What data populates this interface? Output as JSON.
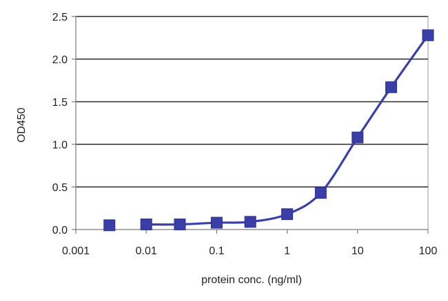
{
  "chart_data": {
    "type": "line",
    "title": "",
    "xlabel": "protein conc. (ng/ml)",
    "ylabel": "OD450",
    "x_scale": "log",
    "xlim": [
      0.001,
      100
    ],
    "ylim": [
      0,
      2.5
    ],
    "x_ticks": [
      0.001,
      0.01,
      0.1,
      1,
      10,
      100
    ],
    "x_tick_labels": [
      "0.001",
      "0.01",
      "0.1",
      "1",
      "10",
      "100"
    ],
    "y_ticks": [
      0,
      0.5,
      1,
      1.5,
      2,
      2.5
    ],
    "y_tick_labels": [
      "0.0",
      "0.5",
      "1.0",
      "1.5",
      "2.0",
      "2.5"
    ],
    "grid": "horizontal",
    "legend": "none",
    "series": [
      {
        "color": "#3a3fa8",
        "marker": "square",
        "line": "smooth",
        "x": [
          0.003,
          0.01,
          0.03,
          0.1,
          0.3,
          1,
          3,
          10,
          30,
          100
        ],
        "y": [
          0.05,
          0.06,
          0.06,
          0.08,
          0.09,
          0.18,
          0.43,
          1.08,
          1.67,
          2.28
        ]
      }
    ]
  }
}
